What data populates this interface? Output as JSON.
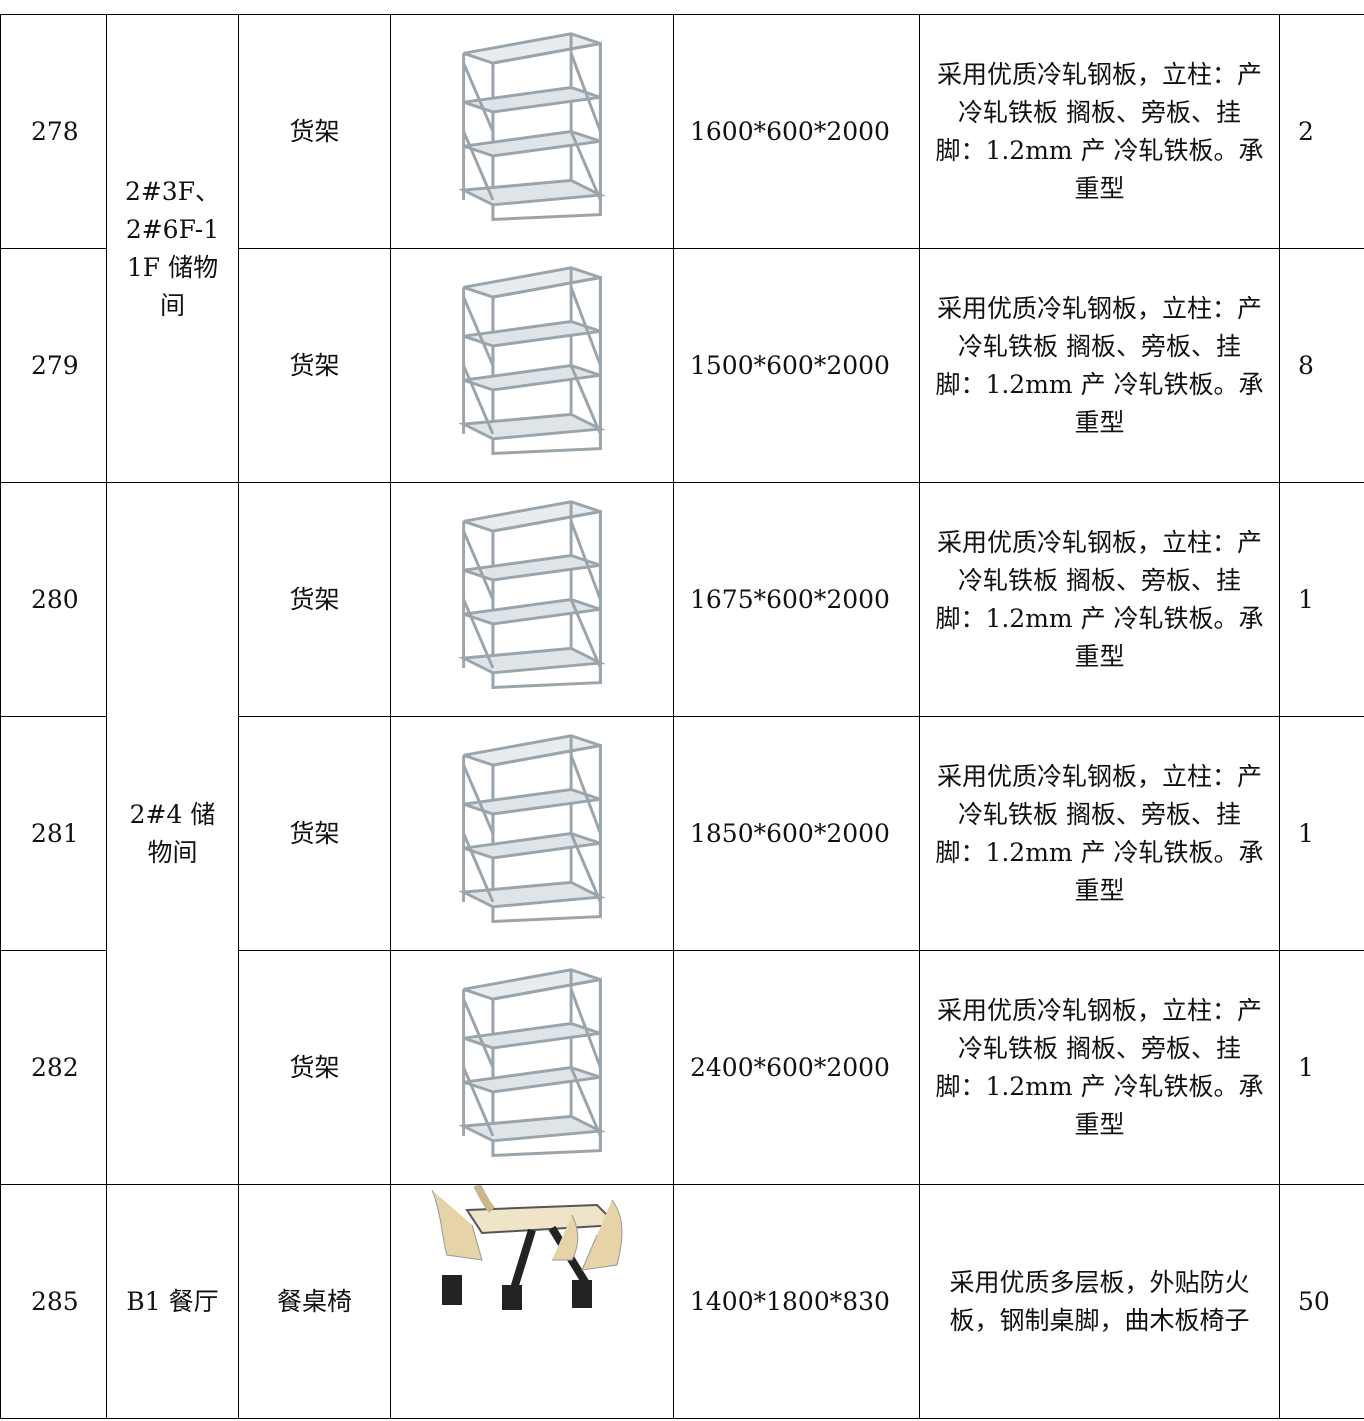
{
  "table": {
    "groups": [
      {
        "location": "2#3F、2#6F-11F 储物间",
        "items": [
          {
            "no": "278",
            "name": "货架",
            "size": "1600*600*2000",
            "description": "采用优质冷轧钢板，立柱：产冷轧铁板 搁板、旁板、挂脚：1.2mm 产 冷轧铁板。承重型",
            "quantity": "2"
          },
          {
            "no": "279",
            "name": "货架",
            "size": "1500*600*2000",
            "description": "采用优质冷轧钢板，立柱：产冷轧铁板 搁板、旁板、挂脚：1.2mm 产 冷轧铁板。承重型",
            "quantity": "8"
          }
        ]
      },
      {
        "location": "2#4 储物间",
        "items": [
          {
            "no": "280",
            "name": "货架",
            "size": "1675*600*2000",
            "description": "采用优质冷轧钢板，立柱：产冷轧铁板 搁板、旁板、挂脚：1.2mm 产 冷轧铁板。承重型",
            "quantity": "1"
          },
          {
            "no": "281",
            "name": "货架",
            "size": "1850*600*2000",
            "description": "采用优质冷轧钢板，立柱：产冷轧铁板 搁板、旁板、挂脚：1.2mm 产 冷轧铁板。承重型",
            "quantity": "1"
          },
          {
            "no": "282",
            "name": "货架",
            "size": "2400*600*2000",
            "description": "采用优质冷轧钢板，立柱：产冷轧铁板 搁板、旁板、挂脚：1.2mm 产 冷轧铁板。承重型",
            "quantity": "1"
          }
        ]
      },
      {
        "location": "B1 餐厅",
        "items": [
          {
            "no": "285",
            "name": "餐桌椅",
            "size": "1400*1800*830",
            "description": "采用优质多层板，外贴防火板，钢制桌脚，曲木板椅子",
            "quantity": "50"
          }
        ]
      }
    ]
  }
}
